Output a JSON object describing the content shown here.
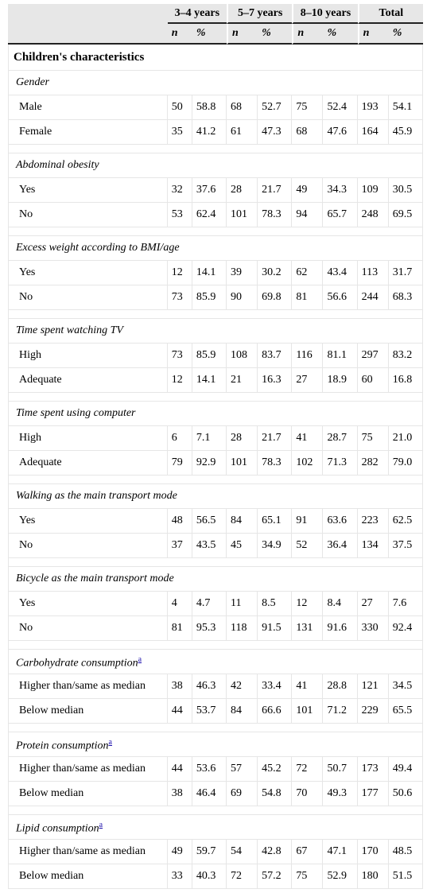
{
  "header": {
    "groups": [
      "3–4 years",
      "5–7 years",
      "8–10 years",
      "Total"
    ],
    "subheaders": [
      "n",
      "%",
      "n",
      "%",
      "n",
      "%",
      "n",
      "%"
    ]
  },
  "section_title": "Children's characteristics",
  "categories": [
    {
      "title": "Gender",
      "footnote": "",
      "rows": [
        {
          "label": "Male",
          "values": [
            "50",
            "58.8",
            "68",
            "52.7",
            "75",
            "52.4",
            "193",
            "54.1"
          ]
        },
        {
          "label": "Female",
          "values": [
            "35",
            "41.2",
            "61",
            "47.3",
            "68",
            "47.6",
            "164",
            "45.9"
          ]
        }
      ]
    },
    {
      "title": "Abdominal obesity",
      "footnote": "",
      "rows": [
        {
          "label": "Yes",
          "values": [
            "32",
            "37.6",
            "28",
            "21.7",
            "49",
            "34.3",
            "109",
            "30.5"
          ]
        },
        {
          "label": "No",
          "values": [
            "53",
            "62.4",
            "101",
            "78.3",
            "94",
            "65.7",
            "248",
            "69.5"
          ]
        }
      ]
    },
    {
      "title": "Excess weight according to BMI/age",
      "footnote": "",
      "rows": [
        {
          "label": "Yes",
          "values": [
            "12",
            "14.1",
            "39",
            "30.2",
            "62",
            "43.4",
            "113",
            "31.7"
          ]
        },
        {
          "label": "No",
          "values": [
            "73",
            "85.9",
            "90",
            "69.8",
            "81",
            "56.6",
            "244",
            "68.3"
          ]
        }
      ]
    },
    {
      "title": "Time spent watching TV",
      "footnote": "",
      "rows": [
        {
          "label": "High",
          "values": [
            "73",
            "85.9",
            "108",
            "83.7",
            "116",
            "81.1",
            "297",
            "83.2"
          ]
        },
        {
          "label": "Adequate",
          "values": [
            "12",
            "14.1",
            "21",
            "16.3",
            "27",
            "18.9",
            "60",
            "16.8"
          ]
        }
      ]
    },
    {
      "title": "Time spent using computer",
      "footnote": "",
      "rows": [
        {
          "label": "High",
          "values": [
            "6",
            "7.1",
            "28",
            "21.7",
            "41",
            "28.7",
            "75",
            "21.0"
          ]
        },
        {
          "label": "Adequate",
          "values": [
            "79",
            "92.9",
            "101",
            "78.3",
            "102",
            "71.3",
            "282",
            "79.0"
          ]
        }
      ]
    },
    {
      "title": "Walking as the main transport mode",
      "footnote": "",
      "rows": [
        {
          "label": "Yes",
          "values": [
            "48",
            "56.5",
            "84",
            "65.1",
            "91",
            "63.6",
            "223",
            "62.5"
          ]
        },
        {
          "label": "No",
          "values": [
            "37",
            "43.5",
            "45",
            "34.9",
            "52",
            "36.4",
            "134",
            "37.5"
          ]
        }
      ]
    },
    {
      "title": "Bicycle as the main transport mode",
      "footnote": "",
      "rows": [
        {
          "label": "Yes",
          "values": [
            "4",
            "4.7",
            "11",
            "8.5",
            "12",
            "8.4",
            "27",
            "7.6"
          ]
        },
        {
          "label": "No",
          "values": [
            "81",
            "95.3",
            "118",
            "91.5",
            "131",
            "91.6",
            "330",
            "92.4"
          ]
        }
      ]
    },
    {
      "title": "Carbohydrate consumption",
      "footnote": "a",
      "rows": [
        {
          "label": "Higher than/same as median",
          "values": [
            "38",
            "46.3",
            "42",
            "33.4",
            "41",
            "28.8",
            "121",
            "34.5"
          ]
        },
        {
          "label": "Below median",
          "values": [
            "44",
            "53.7",
            "84",
            "66.6",
            "101",
            "71.2",
            "229",
            "65.5"
          ]
        }
      ]
    },
    {
      "title": "Protein consumption",
      "footnote": "a",
      "rows": [
        {
          "label": "Higher than/same as median",
          "values": [
            "44",
            "53.6",
            "57",
            "45.2",
            "72",
            "50.7",
            "173",
            "49.4"
          ]
        },
        {
          "label": "Below median",
          "values": [
            "38",
            "46.4",
            "69",
            "54.8",
            "70",
            "49.3",
            "177",
            "50.6"
          ]
        }
      ]
    },
    {
      "title": "Lipid consumption",
      "footnote": "a",
      "rows": [
        {
          "label": "Higher than/same as median",
          "values": [
            "49",
            "59.7",
            "54",
            "42.8",
            "67",
            "47.1",
            "170",
            "48.5"
          ]
        },
        {
          "label": "Below median",
          "values": [
            "33",
            "40.3",
            "72",
            "57.2",
            "75",
            "52.9",
            "180",
            "51.5"
          ]
        }
      ]
    }
  ]
}
